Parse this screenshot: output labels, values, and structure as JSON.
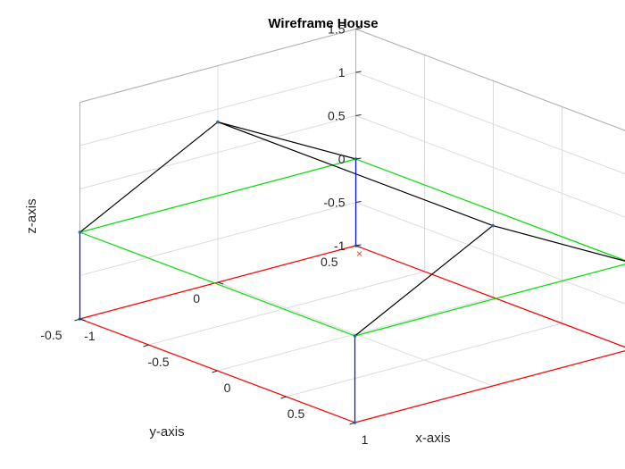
{
  "chart_data": {
    "type": "wireframe-3d",
    "title": "Wireframe House",
    "xlabel": "x-axis",
    "ylabel": "y-axis",
    "zlabel": "z-axis",
    "xlim": [
      -1,
      1
    ],
    "ylim": [
      -0.5,
      0.5
    ],
    "zlim": [
      -1,
      1.5
    ],
    "xticks": [
      {
        "v": -1,
        "label": "-1"
      },
      {
        "v": -0.5,
        "label": "-0.5"
      },
      {
        "v": 0,
        "label": "0"
      },
      {
        "v": 0.5,
        "label": "0.5"
      },
      {
        "v": 1,
        "label": "1"
      }
    ],
    "yticks": [
      {
        "v": -0.5,
        "label": "-0.5"
      },
      {
        "v": 0,
        "label": "0"
      },
      {
        "v": 0.5,
        "label": "0.5"
      }
    ],
    "zticks": [
      {
        "v": -1,
        "label": "-1"
      },
      {
        "v": -0.5,
        "label": "-0.5"
      },
      {
        "v": 0,
        "label": "0"
      },
      {
        "v": 0.5,
        "label": "0.5"
      },
      {
        "v": 1,
        "label": "1"
      },
      {
        "v": 1.5,
        "label": "1.5"
      }
    ],
    "grid": true,
    "colors": {
      "floor": "#ff0000",
      "walls": "#0000ff",
      "eaves": "#00dd00",
      "roof": "#000000",
      "marker": "#ff3b1f",
      "vertex": "#1f6fa8",
      "grid": "#dcdcdc",
      "box": "#b0b0b0"
    },
    "vertices": [
      {
        "id": "A",
        "x": -1,
        "y": -0.5,
        "z": -1
      },
      {
        "id": "B",
        "x": 1,
        "y": -0.5,
        "z": -1
      },
      {
        "id": "C",
        "x": 1,
        "y": 0.5,
        "z": -1
      },
      {
        "id": "D",
        "x": -1,
        "y": 0.5,
        "z": -1
      },
      {
        "id": "E",
        "x": -1,
        "y": -0.5,
        "z": 0
      },
      {
        "id": "F",
        "x": 1,
        "y": -0.5,
        "z": 0
      },
      {
        "id": "G",
        "x": 1,
        "y": 0.5,
        "z": 0
      },
      {
        "id": "H",
        "x": -1,
        "y": 0.5,
        "z": 0
      },
      {
        "id": "R1",
        "x": -1,
        "y": 0,
        "z": 0.85
      },
      {
        "id": "R2",
        "x": 1,
        "y": 0,
        "z": 0.85
      }
    ],
    "edges": [
      {
        "from": "A",
        "to": "B",
        "group": "floor"
      },
      {
        "from": "B",
        "to": "C",
        "group": "floor"
      },
      {
        "from": "C",
        "to": "D",
        "group": "floor"
      },
      {
        "from": "D",
        "to": "A",
        "group": "floor"
      },
      {
        "from": "A",
        "to": "E",
        "group": "walls"
      },
      {
        "from": "B",
        "to": "F",
        "group": "walls"
      },
      {
        "from": "C",
        "to": "G",
        "group": "walls"
      },
      {
        "from": "D",
        "to": "H",
        "group": "walls"
      },
      {
        "from": "E",
        "to": "F",
        "group": "eaves"
      },
      {
        "from": "F",
        "to": "G",
        "group": "eaves"
      },
      {
        "from": "G",
        "to": "H",
        "group": "eaves"
      },
      {
        "from": "H",
        "to": "E",
        "group": "eaves"
      },
      {
        "from": "E",
        "to": "R1",
        "group": "roof"
      },
      {
        "from": "H",
        "to": "R1",
        "group": "roof"
      },
      {
        "from": "R1",
        "to": "R2",
        "group": "roof"
      },
      {
        "from": "F",
        "to": "R2",
        "group": "roof"
      },
      {
        "from": "G",
        "to": "R2",
        "group": "roof"
      }
    ],
    "marker": {
      "x": 0,
      "y": 0,
      "z": 0,
      "symbol": "×"
    }
  }
}
